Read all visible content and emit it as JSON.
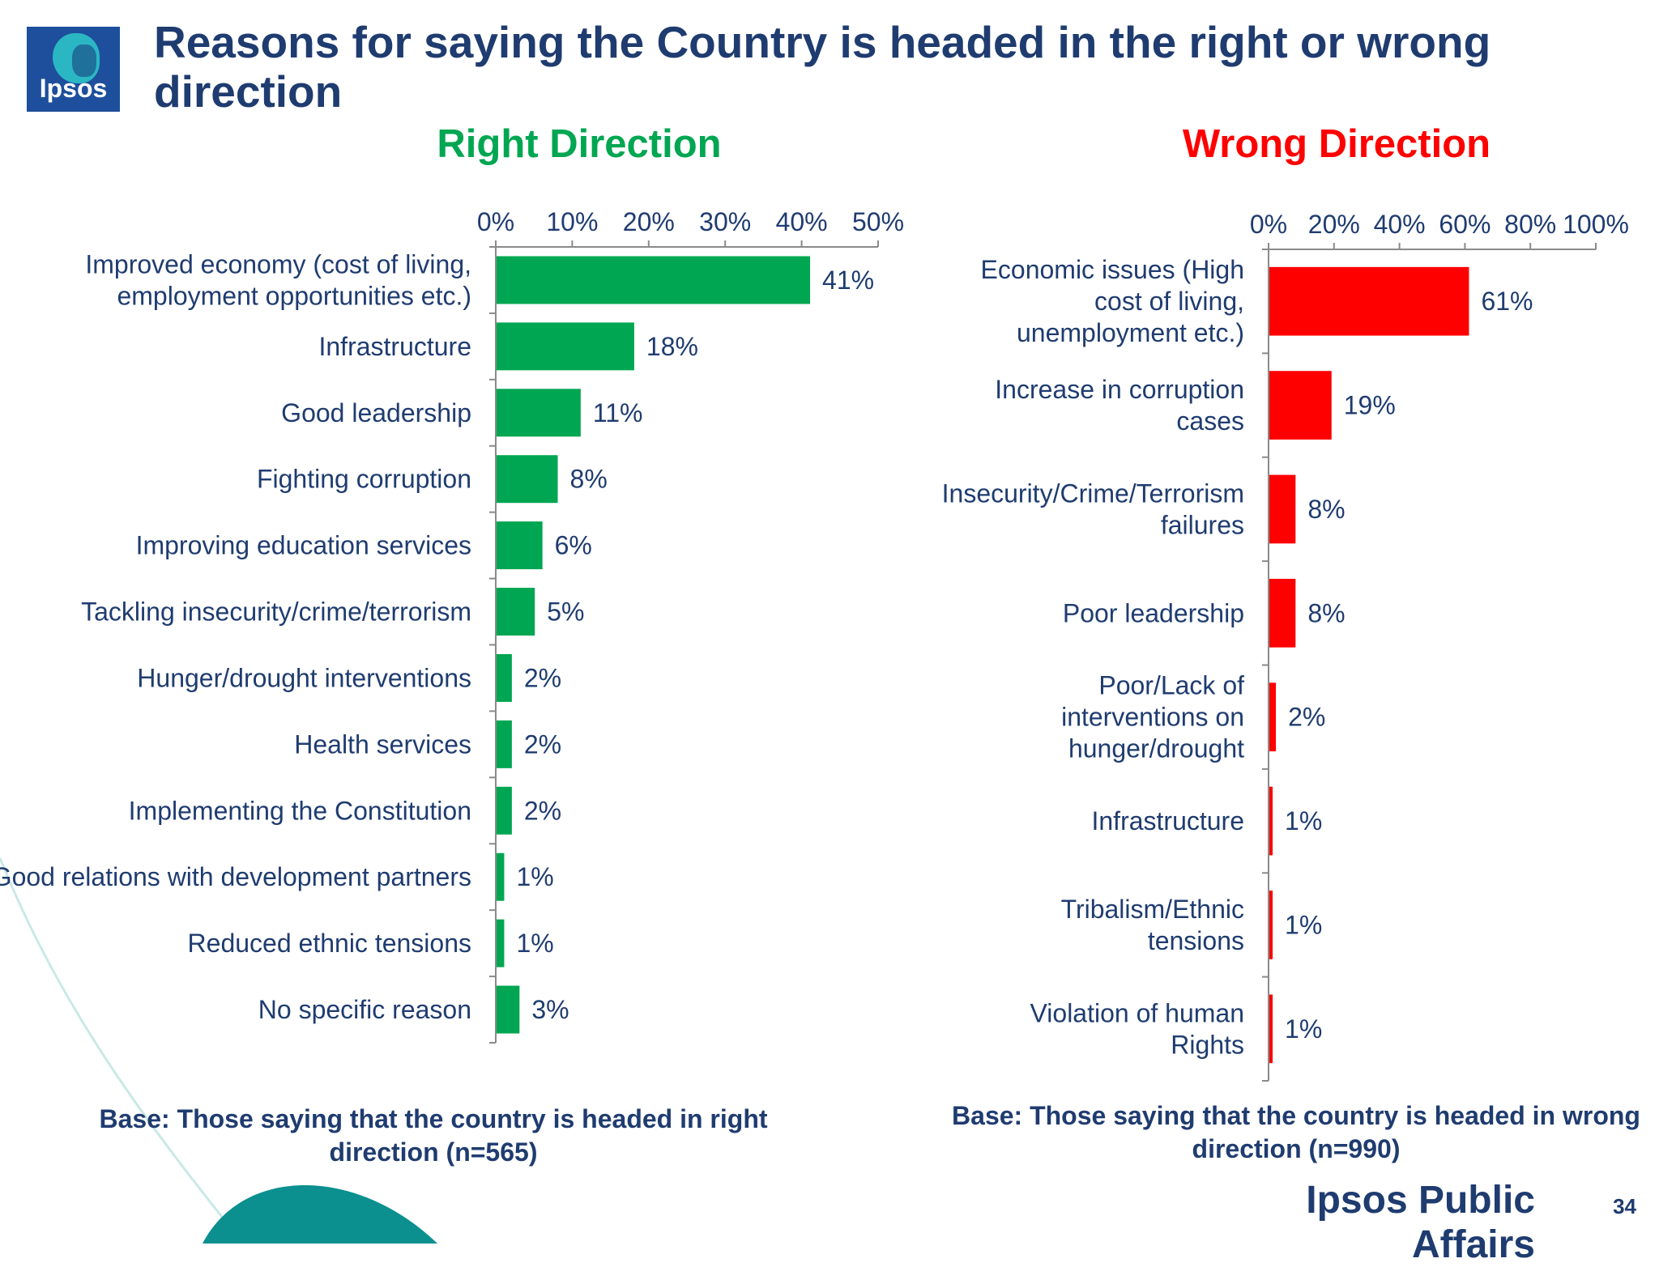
{
  "title": "Reasons for saying the Country is headed in the right or wrong direction",
  "logo_text": "Ipsos",
  "footer_brand": "Ipsos Public Affairs",
  "page_number": "34",
  "colors": {
    "title": "#1f3c70",
    "right_direction": "#00a651",
    "wrong_direction": "#ff0000",
    "text": "#1f3c70"
  },
  "chart_data": [
    {
      "type": "bar",
      "orientation": "horizontal",
      "title": "Right Direction",
      "categories": [
        "Improved economy (cost of living, employment opportunities etc.)",
        "Infrastructure",
        "Good leadership",
        "Fighting corruption",
        "Improving education services",
        "Tackling insecurity/crime/terrorism",
        "Hunger/drought interventions",
        "Health services",
        "Implementing the Constitution",
        "Good relations with development partners",
        "Reduced ethnic tensions",
        "No specific reason"
      ],
      "values": [
        41,
        18,
        11,
        8,
        6,
        5,
        2,
        2,
        2,
        1,
        1,
        3
      ],
      "value_labels": [
        "41%",
        "18%",
        "11%",
        "8%",
        "6%",
        "5%",
        "2%",
        "2%",
        "2%",
        "1%",
        "1%",
        "3%"
      ],
      "xlim": [
        0,
        50
      ],
      "xticks": [
        "0%",
        "10%",
        "20%",
        "30%",
        "40%",
        "50%"
      ],
      "axis_position": "top",
      "color": "#00a651",
      "grid": false,
      "base_note": "Base: Those saying that the country is headed in right direction (n=565)"
    },
    {
      "type": "bar",
      "orientation": "horizontal",
      "title": "Wrong Direction",
      "categories": [
        "Economic issues (High cost of living, unemployment etc.)",
        "Increase in corruption cases",
        "Insecurity/Crime/Terrorism failures",
        "Poor leadership",
        "Poor/Lack of interventions on hunger/drought",
        "Infrastructure",
        "Tribalism/Ethnic tensions",
        "Violation of human Rights"
      ],
      "values": [
        61,
        19,
        8,
        8,
        2,
        1,
        1,
        1
      ],
      "value_labels": [
        "61%",
        "19%",
        "8%",
        "8%",
        "2%",
        "1%",
        "1%",
        "1%"
      ],
      "xlim": [
        0,
        100
      ],
      "xticks": [
        "0%",
        "20%",
        "40%",
        "60%",
        "80%",
        "100%"
      ],
      "axis_position": "top",
      "color": "#ff0000",
      "grid": false,
      "base_note": "Base: Those saying that the country is headed in wrong direction (n=990)"
    }
  ]
}
